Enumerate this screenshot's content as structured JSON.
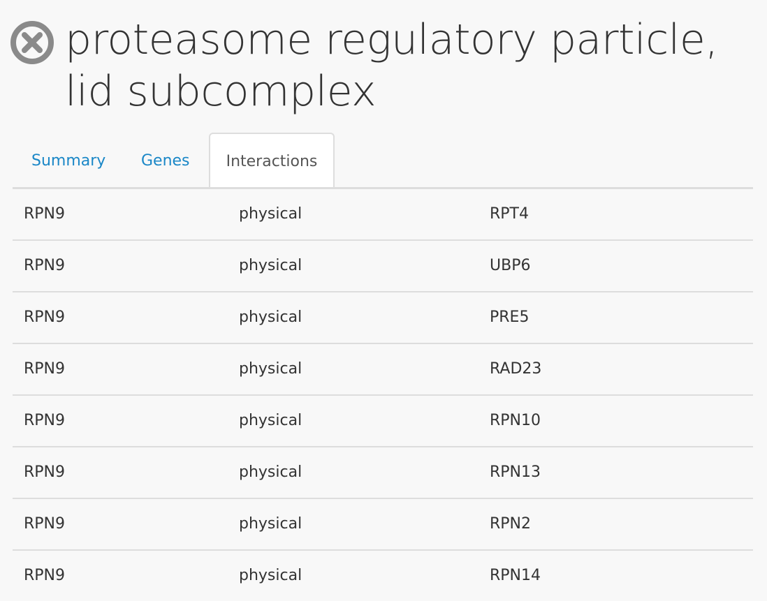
{
  "header": {
    "title": "proteasome regulatory particle, lid subcomplex",
    "close_icon": "close-circle-icon"
  },
  "tabs": [
    {
      "label": "Summary",
      "active": false
    },
    {
      "label": "Genes",
      "active": false
    },
    {
      "label": "Interactions",
      "active": true
    }
  ],
  "interactions": [
    {
      "gene": "RPN9",
      "type": "physical",
      "partner": "RPT4"
    },
    {
      "gene": "RPN9",
      "type": "physical",
      "partner": "UBP6"
    },
    {
      "gene": "RPN9",
      "type": "physical",
      "partner": "PRE5"
    },
    {
      "gene": "RPN9",
      "type": "physical",
      "partner": "RAD23"
    },
    {
      "gene": "RPN9",
      "type": "physical",
      "partner": "RPN10"
    },
    {
      "gene": "RPN9",
      "type": "physical",
      "partner": "RPN13"
    },
    {
      "gene": "RPN9",
      "type": "physical",
      "partner": "RPN2"
    },
    {
      "gene": "RPN9",
      "type": "physical",
      "partner": "RPN14"
    }
  ],
  "colors": {
    "link": "#1a87c7",
    "text": "#333333",
    "border": "#dddddd",
    "background": "#f8f8f8",
    "icon": "#8a8a8a"
  }
}
